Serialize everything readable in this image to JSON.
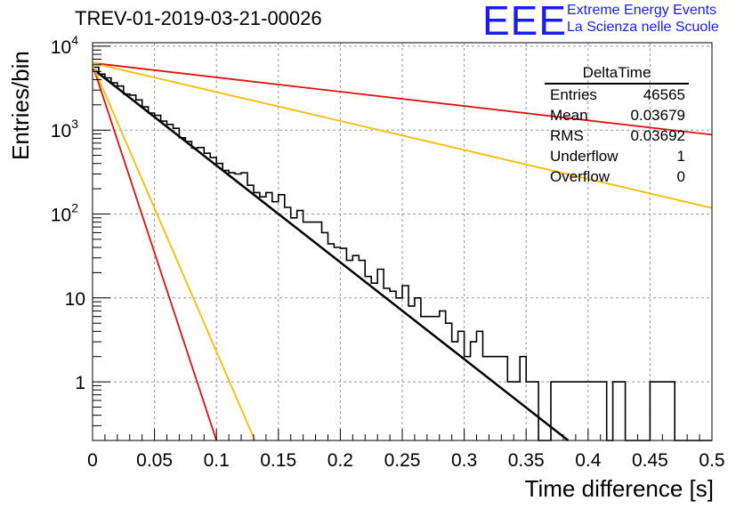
{
  "title": "TREV-01-2019-03-21-00026",
  "logo": {
    "mark": "EEE",
    "line1": "Extreme Energy Events",
    "line2": "La Scienza nelle Scuole",
    "color": "#1a1aff"
  },
  "stats": {
    "header": "DeltaTime",
    "rows": [
      {
        "label": "Entries",
        "value": "46565"
      },
      {
        "label": "Mean",
        "value": "0.03679"
      },
      {
        "label": "RMS",
        "value": "0.03692"
      },
      {
        "label": "Underflow",
        "value": "1"
      },
      {
        "label": "Overflow",
        "value": "0"
      }
    ]
  },
  "chart_data": {
    "type": "line",
    "xlabel": "Time difference [s]",
    "ylabel": "Entries/bin",
    "xlim": [
      0,
      0.5
    ],
    "ylim": [
      0.2,
      11000
    ],
    "yscale": "log",
    "grid": true,
    "x_ticks": [
      "0",
      "0.05",
      "0.1",
      "0.15",
      "0.2",
      "0.25",
      "0.3",
      "0.35",
      "0.4",
      "0.45",
      "0.5"
    ],
    "y_ticks": [
      {
        "value": 1,
        "label": "1"
      },
      {
        "value": 10,
        "label": "10"
      },
      {
        "value": 100,
        "label": "10^2"
      },
      {
        "value": 1000,
        "label": "10^3"
      },
      {
        "value": 10000,
        "label": "10^4"
      }
    ],
    "histogram": {
      "bin_width": 0.005,
      "color": "#000000",
      "counts": [
        5600,
        4650,
        4180,
        3660,
        3350,
        2690,
        2610,
        2290,
        1890,
        1600,
        1500,
        1280,
        1170,
        1050,
        810,
        730,
        610,
        620,
        530,
        470,
        400,
        330,
        310,
        300,
        310,
        220,
        180,
        160,
        180,
        140,
        170,
        120,
        90,
        110,
        80,
        80,
        80,
        60,
        44,
        40,
        39,
        28,
        32,
        28,
        18,
        15,
        22,
        13,
        12,
        10,
        14,
        8,
        10,
        6,
        6,
        6,
        7,
        5,
        3,
        4,
        2,
        3,
        4,
        2,
        2,
        2,
        2,
        1,
        1,
        2,
        1,
        1,
        0,
        0,
        1,
        1,
        1,
        1,
        1,
        1,
        1,
        1,
        1,
        0,
        1,
        1,
        0,
        0,
        0,
        0,
        1,
        1,
        1,
        1,
        0,
        0,
        0,
        0,
        0,
        0
      ]
    },
    "series": [
      {
        "color": "#000000",
        "width": 2.5,
        "points": [
          [
            0,
            5400
          ],
          [
            0.384,
            0.2
          ]
        ]
      },
      {
        "color": "#dd1111",
        "width": 1.8,
        "points": [
          [
            0,
            6300
          ],
          [
            0.5,
            880
          ]
        ]
      },
      {
        "color": "#ffbb00",
        "width": 1.8,
        "points": [
          [
            0,
            6300
          ],
          [
            0.5,
            118
          ]
        ]
      },
      {
        "color": "#dd1111",
        "width": 1.8,
        "points": [
          [
            0,
            6000
          ],
          [
            0.1,
            0.2
          ]
        ]
      },
      {
        "color": "#ffbb00",
        "width": 1.8,
        "points": [
          [
            0,
            6000
          ],
          [
            0.131,
            0.2
          ]
        ]
      }
    ]
  }
}
